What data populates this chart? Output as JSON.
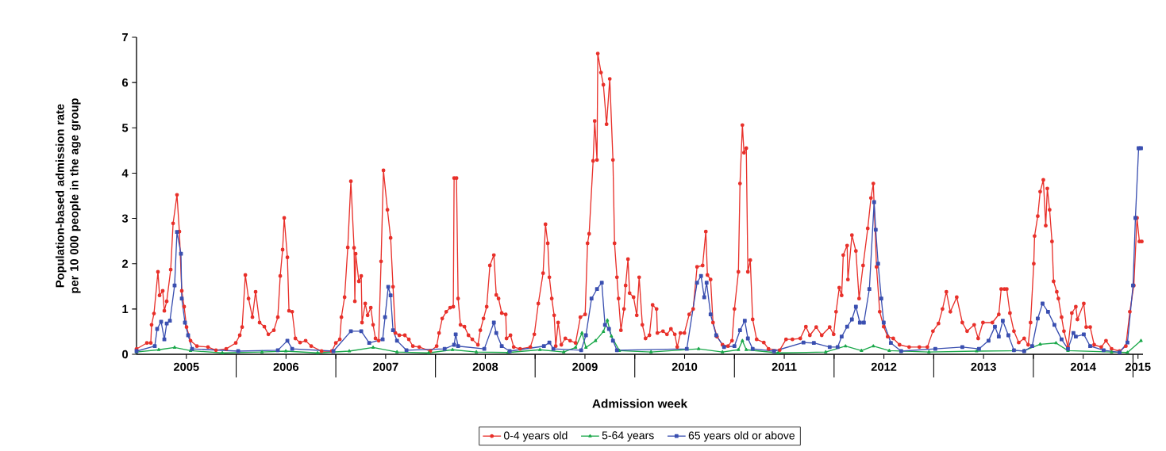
{
  "chart_data": {
    "type": "line",
    "xlabel": "Admission week",
    "ylabel": "Population-based admission rate per 10 000 people in the age group",
    "xlim": [
      2005,
      2015.1
    ],
    "ylim": [
      0,
      7
    ],
    "yticks": [
      0,
      1,
      2,
      3,
      4,
      5,
      6,
      7
    ],
    "xticks": [
      {
        "value": 2005.5,
        "label": "2005"
      },
      {
        "value": 2006,
        "label": null
      },
      {
        "value": 2006.5,
        "label": "2006"
      },
      {
        "value": 2007,
        "label": null
      },
      {
        "value": 2007.5,
        "label": "2007"
      },
      {
        "value": 2008,
        "label": null
      },
      {
        "value": 2008.5,
        "label": "2008"
      },
      {
        "value": 2009,
        "label": null
      },
      {
        "value": 2009.5,
        "label": "2009"
      },
      {
        "value": 2010,
        "label": null
      },
      {
        "value": 2010.5,
        "label": "2010"
      },
      {
        "value": 2011,
        "label": null
      },
      {
        "value": 2011.5,
        "label": "2011"
      },
      {
        "value": 2012,
        "label": null
      },
      {
        "value": 2012.5,
        "label": "2012"
      },
      {
        "value": 2013,
        "label": null
      },
      {
        "value": 2013.5,
        "label": "2013"
      },
      {
        "value": 2014,
        "label": null
      },
      {
        "value": 2014.5,
        "label": "2014"
      },
      {
        "value": 2015,
        "label": null
      },
      {
        "value": 2015.05,
        "label": "2015"
      }
    ],
    "legend": "bottom",
    "line_style": "solid",
    "series": [
      {
        "name": "0-4 years old",
        "color": "#e8302a",
        "marker": "circle",
        "x": [
          2005.0,
          2005.104,
          2005.143,
          2005.151,
          2005.175,
          2005.215,
          2005.231,
          2005.263,
          2005.279,
          2005.303,
          2005.343,
          2005.367,
          2005.406,
          2005.43,
          2005.454,
          2005.478,
          2005.502,
          2005.542,
          2005.606,
          2005.717,
          2005.797,
          2005.9,
          2005.996,
          2006.036,
          2006.06,
          2006.092,
          2006.124,
          2006.163,
          2006.195,
          2006.235,
          2006.283,
          2006.323,
          2006.378,
          2006.418,
          2006.442,
          2006.466,
          2006.482,
          2006.514,
          2006.53,
          2006.562,
          2006.594,
          2006.641,
          2006.697,
          2006.753,
          2006.857,
          2006.96,
          2007.0,
          2007.04,
          2007.056,
          2007.088,
          2007.12,
          2007.151,
          2007.183,
          2007.191,
          2007.199,
          2007.231,
          2007.255,
          2007.263,
          2007.295,
          2007.319,
          2007.351,
          2007.374,
          2007.398,
          2007.43,
          2007.454,
          2007.478,
          2007.518,
          2007.55,
          2007.574,
          2007.598,
          2007.637,
          2007.693,
          2007.733,
          2007.773,
          2007.837,
          2007.948,
          2008.012,
          2008.036,
          2008.068,
          2008.108,
          2008.147,
          2008.179,
          2008.187,
          2008.211,
          2008.227,
          2008.251,
          2008.291,
          2008.331,
          2008.37,
          2008.426,
          2008.45,
          2008.482,
          2008.514,
          2008.546,
          2008.586,
          2008.61,
          2008.633,
          2008.665,
          2008.705,
          2008.713,
          2008.753,
          2008.785,
          2008.849,
          2008.952,
          2008.992,
          2009.032,
          2009.08,
          2009.104,
          2009.127,
          2009.143,
          2009.167,
          2009.191,
          2009.207,
          2009.231,
          2009.263,
          2009.303,
          2009.351,
          2009.406,
          2009.454,
          2009.502,
          2009.526,
          2009.542,
          2009.582,
          2009.598,
          2009.621,
          2009.629,
          2009.661,
          2009.685,
          2009.717,
          2009.749,
          2009.781,
          2009.797,
          2009.821,
          2009.837,
          2009.861,
          2009.892,
          2009.908,
          2009.932,
          2009.948,
          2009.988,
          2010.02,
          2010.044,
          2010.076,
          2010.108,
          2010.147,
          2010.179,
          2010.219,
          2010.227,
          2010.283,
          2010.323,
          2010.363,
          2010.402,
          2010.426,
          2010.458,
          2010.498,
          2010.546,
          2010.586,
          2010.625,
          2010.681,
          2010.713,
          2010.729,
          2010.761,
          2010.785,
          2010.825,
          2010.88,
          2010.936,
          2010.976,
          2011.0,
          2011.04,
          2011.056,
          2011.08,
          2011.096,
          2011.119,
          2011.135,
          2011.159,
          2011.183,
          2011.223,
          2011.295,
          2011.342,
          2011.454,
          2011.518,
          2011.582,
          2011.661,
          2011.717,
          2011.757,
          2011.821,
          2011.876,
          2011.956,
          2011.996,
          2012.02,
          2012.052,
          2012.076,
          2012.092,
          2012.131,
          2012.139,
          2012.179,
          2012.219,
          2012.251,
          2012.291,
          2012.338,
          2012.37,
          2012.394,
          2012.426,
          2012.458,
          2012.498,
          2012.538,
          2012.594,
          2012.657,
          2012.753,
          2012.856,
          2012.936,
          2012.992,
          2013.048,
          2013.088,
          2013.127,
          2013.167,
          2013.231,
          2013.287,
          2013.335,
          2013.406,
          2013.446,
          2013.494,
          2013.589,
          2013.653,
          2013.677,
          2013.709,
          2013.733,
          2013.765,
          2013.805,
          2013.853,
          2013.908,
          2013.948,
          2013.972,
          2014.004,
          2014.012,
          2014.044,
          2014.068,
          2014.1,
          2014.124,
          2014.14,
          2014.163,
          2014.187,
          2014.203,
          2014.235,
          2014.251,
          2014.283,
          2014.307,
          2014.347,
          2014.386,
          2014.426,
          2014.442,
          2014.506,
          2014.53,
          2014.57,
          2014.61,
          2014.681,
          2014.729,
          2014.785,
          2014.865,
          2014.928,
          2014.968,
          2015.008,
          2015.04,
          2015.064,
          2015.088
        ],
        "values": [
          0.12,
          0.25,
          0.25,
          0.65,
          0.9,
          1.82,
          1.3,
          1.4,
          0.96,
          1.17,
          1.87,
          2.89,
          3.52,
          2.71,
          1.4,
          1.05,
          0.6,
          0.3,
          0.18,
          0.16,
          0.09,
          0.12,
          0.25,
          0.42,
          0.6,
          1.75,
          1.23,
          0.82,
          1.38,
          0.7,
          0.61,
          0.44,
          0.53,
          0.82,
          1.73,
          2.31,
          3.01,
          2.14,
          0.96,
          0.94,
          0.35,
          0.26,
          0.3,
          0.18,
          0.07,
          0.07,
          0.25,
          0.33,
          0.82,
          1.26,
          2.36,
          3.82,
          2.35,
          1.17,
          2.22,
          1.61,
          1.73,
          0.7,
          1.12,
          0.86,
          1.03,
          0.65,
          0.35,
          0.3,
          2.05,
          4.06,
          3.19,
          2.57,
          1.49,
          0.47,
          0.42,
          0.42,
          0.33,
          0.18,
          0.16,
          0.07,
          0.18,
          0.47,
          0.79,
          0.94,
          1.03,
          1.05,
          3.89,
          3.89,
          1.23,
          0.65,
          0.61,
          0.42,
          0.33,
          0.21,
          0.53,
          0.79,
          1.05,
          1.96,
          2.19,
          1.31,
          1.23,
          0.91,
          0.88,
          0.35,
          0.42,
          0.16,
          0.12,
          0.16,
          0.44,
          1.12,
          1.79,
          2.87,
          2.45,
          1.7,
          1.23,
          0.86,
          0.18,
          0.7,
          0.21,
          0.35,
          0.3,
          0.25,
          0.82,
          0.88,
          2.45,
          2.66,
          4.27,
          5.15,
          4.29,
          6.64,
          6.22,
          5.95,
          5.08,
          6.08,
          4.29,
          2.45,
          1.7,
          1.23,
          0.53,
          1.0,
          1.52,
          2.1,
          1.35,
          1.26,
          0.86,
          1.7,
          0.65,
          0.35,
          0.42,
          1.09,
          1.0,
          0.47,
          0.51,
          0.44,
          0.56,
          0.44,
          0.16,
          0.47,
          0.47,
          0.88,
          1.0,
          1.93,
          1.96,
          2.71,
          1.75,
          1.65,
          0.7,
          0.39,
          0.21,
          0.18,
          0.3,
          1.0,
          1.82,
          3.77,
          5.06,
          4.45,
          4.55,
          1.82,
          2.08,
          0.77,
          0.33,
          0.26,
          0.12,
          0.09,
          0.33,
          0.33,
          0.35,
          0.61,
          0.42,
          0.6,
          0.42,
          0.6,
          0.44,
          0.94,
          1.47,
          1.3,
          2.19,
          2.4,
          1.65,
          2.63,
          2.28,
          1.23,
          1.96,
          2.78,
          3.45,
          3.77,
          1.93,
          0.94,
          0.61,
          0.39,
          0.35,
          0.21,
          0.16,
          0.16,
          0.16,
          0.51,
          0.68,
          1.0,
          1.38,
          0.94,
          1.26,
          0.7,
          0.51,
          0.65,
          0.35,
          0.7,
          0.7,
          0.88,
          1.44,
          1.44,
          1.44,
          0.91,
          0.51,
          0.26,
          0.35,
          0.21,
          0.7,
          2.0,
          2.61,
          3.05,
          3.59,
          3.85,
          2.84,
          3.66,
          3.19,
          2.49,
          1.61,
          1.38,
          1.23,
          0.82,
          0.51,
          0.16,
          0.91,
          1.05,
          0.77,
          1.12,
          0.6,
          0.6,
          0.21,
          0.16,
          0.3,
          0.12,
          0.07,
          0.18,
          0.94,
          1.52,
          3.01,
          2.49,
          2.49
        ]
      },
      {
        "name": "5-64 years",
        "color": "#1aa84a",
        "marker": "triangle",
        "x": [
          2005.0,
          2005.223,
          2005.382,
          2005.542,
          2005.861,
          2006.259,
          2006.498,
          2006.817,
          2007.135,
          2007.374,
          2007.614,
          2007.932,
          2008.171,
          2008.41,
          2008.729,
          2009.048,
          2009.287,
          2009.406,
          2009.47,
          2009.51,
          2009.606,
          2009.685,
          2009.725,
          2009.765,
          2009.845,
          2010.163,
          2010.641,
          2010.88,
          2011.04,
          2011.08,
          2011.119,
          2011.438,
          2011.916,
          2012.115,
          2012.275,
          2012.394,
          2012.554,
          2012.952,
          2013.43,
          2013.908,
          2014.068,
          2014.227,
          2014.347,
          2014.785,
          2014.944,
          2015.08
        ],
        "values": [
          0.05,
          0.1,
          0.15,
          0.08,
          0.03,
          0.05,
          0.07,
          0.03,
          0.07,
          0.15,
          0.05,
          0.03,
          0.1,
          0.05,
          0.04,
          0.1,
          0.05,
          0.15,
          0.47,
          0.15,
          0.3,
          0.5,
          0.75,
          0.4,
          0.08,
          0.05,
          0.12,
          0.05,
          0.1,
          0.3,
          0.1,
          0.03,
          0.05,
          0.18,
          0.08,
          0.18,
          0.08,
          0.05,
          0.07,
          0.08,
          0.22,
          0.25,
          0.08,
          0.05,
          0.04,
          0.3
        ]
      },
      {
        "name": "65 years old or above",
        "color": "#3a4fb0",
        "marker": "square",
        "x": [
          2005.0,
          2005.183,
          2005.207,
          2005.247,
          2005.279,
          2005.303,
          2005.335,
          2005.382,
          2005.406,
          2005.446,
          2005.454,
          2005.486,
          2005.518,
          2005.558,
          2006.02,
          2006.418,
          2006.514,
          2006.562,
          2006.976,
          2007.151,
          2007.255,
          2007.335,
          2007.47,
          2007.494,
          2007.526,
          2007.55,
          2007.574,
          2007.614,
          2007.709,
          2008.092,
          2008.187,
          2008.203,
          2008.227,
          2008.49,
          2008.586,
          2008.61,
          2008.665,
          2008.745,
          2009.088,
          2009.143,
          2009.183,
          2009.462,
          2009.51,
          2009.566,
          2009.621,
          2009.669,
          2009.701,
          2009.741,
          2009.781,
          2009.821,
          2010.522,
          2010.625,
          2010.665,
          2010.697,
          2010.721,
          2010.761,
          2010.817,
          2010.896,
          2011.0,
          2011.056,
          2011.104,
          2011.135,
          2011.183,
          2011.398,
          2011.693,
          2011.797,
          2011.956,
          2012.036,
          2012.076,
          2012.131,
          2012.179,
          2012.219,
          2012.259,
          2012.299,
          2012.354,
          2012.402,
          2012.418,
          2012.442,
          2012.474,
          2012.498,
          2012.57,
          2012.673,
          2013.016,
          2013.287,
          2013.454,
          2013.55,
          2013.614,
          2013.653,
          2013.693,
          2013.749,
          2013.805,
          2013.908,
          2013.988,
          2014.044,
          2014.092,
          2014.147,
          2014.211,
          2014.283,
          2014.347,
          2014.402,
          2014.426,
          2014.506,
          2014.57,
          2014.705,
          2014.865,
          2014.944,
          2015.0,
          2015.024,
          2015.056,
          2015.08
        ],
        "values": [
          0.07,
          0.18,
          0.56,
          0.72,
          0.33,
          0.68,
          0.74,
          1.52,
          2.7,
          2.22,
          1.23,
          0.7,
          0.42,
          0.12,
          0.07,
          0.09,
          0.3,
          0.12,
          0.07,
          0.51,
          0.51,
          0.25,
          0.33,
          0.82,
          1.49,
          1.3,
          0.53,
          0.3,
          0.09,
          0.12,
          0.21,
          0.44,
          0.18,
          0.12,
          0.7,
          0.47,
          0.18,
          0.07,
          0.18,
          0.26,
          0.12,
          0.09,
          0.42,
          1.23,
          1.44,
          1.58,
          0.65,
          0.56,
          0.3,
          0.09,
          0.12,
          1.58,
          1.73,
          1.26,
          1.58,
          0.88,
          0.42,
          0.16,
          0.18,
          0.53,
          0.74,
          0.35,
          0.12,
          0.07,
          0.26,
          0.25,
          0.16,
          0.16,
          0.39,
          0.61,
          0.77,
          1.05,
          0.7,
          0.7,
          1.44,
          3.36,
          2.75,
          2.0,
          1.23,
          0.7,
          0.25,
          0.07,
          0.12,
          0.16,
          0.12,
          0.3,
          0.61,
          0.39,
          0.74,
          0.42,
          0.09,
          0.07,
          0.18,
          0.79,
          1.12,
          0.94,
          0.65,
          0.33,
          0.12,
          0.47,
          0.39,
          0.44,
          0.18,
          0.09,
          0.04,
          0.26,
          1.52,
          3.01,
          4.55,
          4.55
        ]
      }
    ]
  }
}
